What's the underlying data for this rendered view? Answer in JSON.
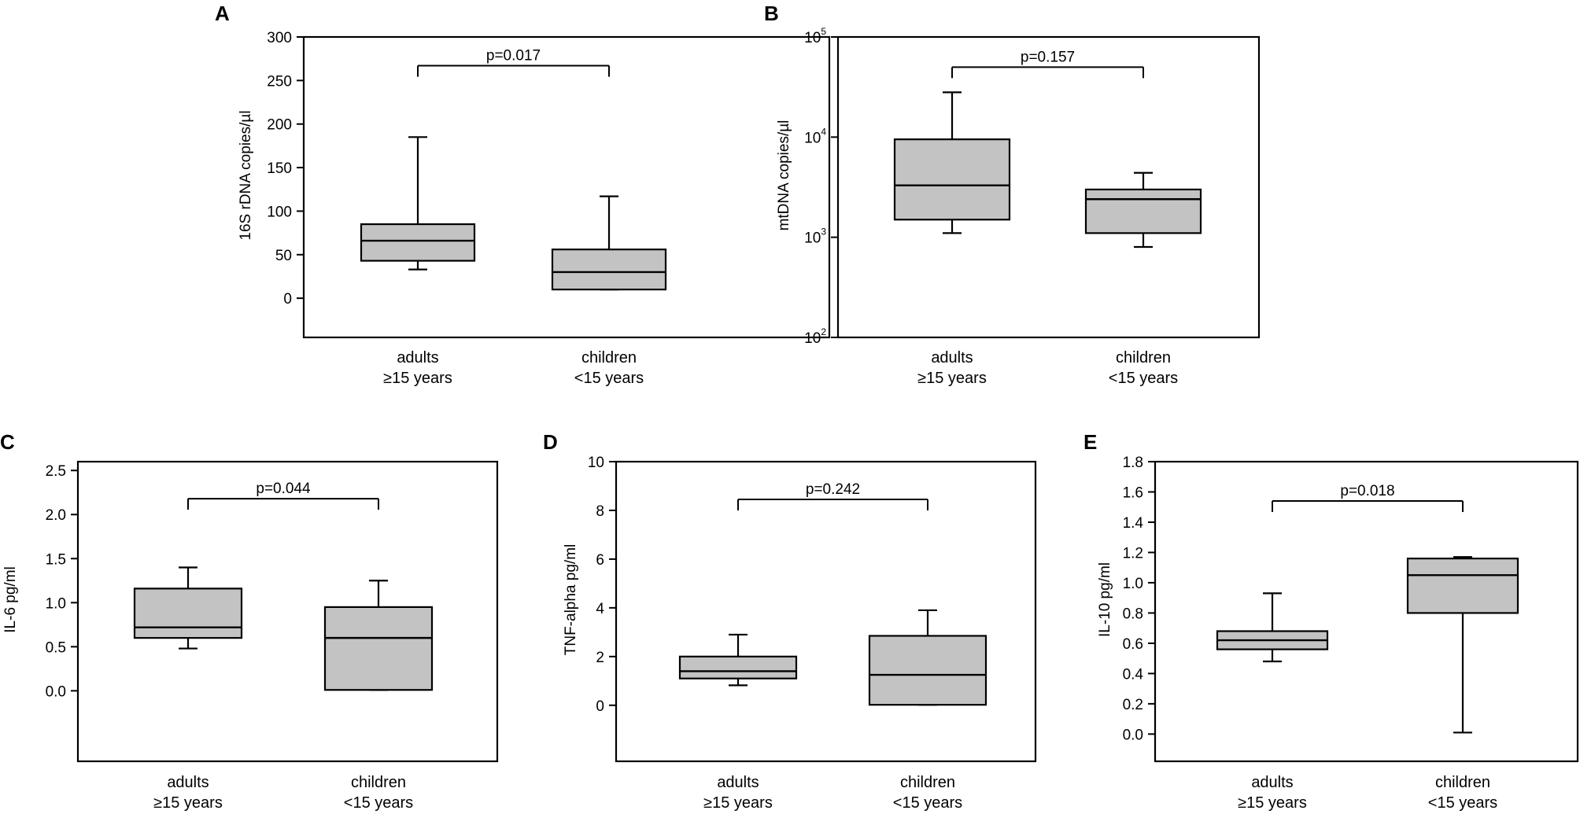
{
  "chart_data": [
    {
      "panel": "A",
      "type": "box",
      "ylabel": "16S rDNA copies/µl",
      "yscale": "linear",
      "ylim": [
        -45,
        300
      ],
      "yticks": [
        "0",
        "50",
        "100",
        "150",
        "200",
        "250",
        "300"
      ],
      "ytick_values": [
        0,
        50,
        100,
        150,
        200,
        250,
        300
      ],
      "categories": [
        {
          "line1": "adults",
          "line2": "≥15 years"
        },
        {
          "line1": "children",
          "line2": "<15 years"
        }
      ],
      "boxes": [
        {
          "min": 33,
          "q1": 43,
          "median": 66,
          "q3": 85,
          "max": 185
        },
        {
          "min": 10,
          "q1": 10,
          "median": 30,
          "q3": 56,
          "max": 117
        }
      ],
      "bracket": {
        "label": "p=0.017",
        "y": 267
      }
    },
    {
      "panel": "B",
      "type": "box",
      "ylabel": "mtDNA copies/µl",
      "yscale": "log",
      "ylim": [
        100,
        100000
      ],
      "yticks_base": [
        "10",
        "10",
        "10",
        "10"
      ],
      "yticks_exp": [
        "2",
        "3",
        "4",
        "5"
      ],
      "ytick_values": [
        100,
        1000,
        10000,
        100000
      ],
      "categories": [
        {
          "line1": "adults",
          "line2": "≥15 years"
        },
        {
          "line1": "children",
          "line2": "<15 years"
        }
      ],
      "boxes": [
        {
          "min": 1100,
          "q1": 1500,
          "median": 3300,
          "q3": 9500,
          "max": 28000
        },
        {
          "min": 800,
          "q1": 1100,
          "median": 2400,
          "q3": 3000,
          "max": 4400
        }
      ],
      "bracket": {
        "label": "p=0.157",
        "y": 50000
      }
    },
    {
      "panel": "C",
      "type": "box",
      "ylabel": "IL-6 pg/ml",
      "yscale": "linear",
      "ylim": [
        -0.8,
        2.6
      ],
      "yticks": [
        "0.0",
        "0.5",
        "1.0",
        "1.5",
        "2.0",
        "2.5"
      ],
      "ytick_values": [
        0,
        0.5,
        1,
        1.5,
        2,
        2.5
      ],
      "categories": [
        {
          "line1": "adults",
          "line2": "≥15 years"
        },
        {
          "line1": "children",
          "line2": "<15 years"
        }
      ],
      "boxes": [
        {
          "min": 0.48,
          "q1": 0.6,
          "median": 0.72,
          "q3": 1.16,
          "max": 1.4
        },
        {
          "min": 0.01,
          "q1": 0.01,
          "median": 0.6,
          "q3": 0.95,
          "max": 1.25
        }
      ],
      "bracket": {
        "label": "p=0.044",
        "y": 2.18
      }
    },
    {
      "panel": "D",
      "type": "box",
      "ylabel": "TNF-alpha pg/ml",
      "yscale": "linear",
      "ylim": [
        -2.3,
        10
      ],
      "yticks": [
        "0",
        "2",
        "4",
        "6",
        "8",
        "10"
      ],
      "ytick_values": [
        0,
        2,
        4,
        6,
        8,
        10
      ],
      "categories": [
        {
          "line1": "adults",
          "line2": "≥15 years"
        },
        {
          "line1": "children",
          "line2": "<15 years"
        }
      ],
      "boxes": [
        {
          "min": 0.82,
          "q1": 1.1,
          "median": 1.4,
          "q3": 2.0,
          "max": 2.9
        },
        {
          "min": 0.02,
          "q1": 0.02,
          "median": 1.25,
          "q3": 2.85,
          "max": 3.9
        }
      ],
      "bracket": {
        "label": "p=0.242",
        "y": 8.45
      }
    },
    {
      "panel": "E",
      "type": "box",
      "ylabel": "IL-10 pg/ml",
      "yscale": "linear",
      "ylim": [
        -0.18,
        1.8
      ],
      "yticks": [
        "0.0",
        "0.2",
        "0.4",
        "0.6",
        "0.8",
        "1.0",
        "1.2",
        "1.4",
        "1.6",
        "1.8"
      ],
      "ytick_values": [
        0,
        0.2,
        0.4,
        0.6,
        0.8,
        1.0,
        1.2,
        1.4,
        1.6,
        1.8
      ],
      "categories": [
        {
          "line1": "adults",
          "line2": "≥15 years"
        },
        {
          "line1": "children",
          "line2": "<15 years"
        }
      ],
      "boxes": [
        {
          "min": 0.48,
          "q1": 0.56,
          "median": 0.62,
          "q3": 0.68,
          "max": 0.93
        },
        {
          "min": 0.01,
          "q1": 0.8,
          "median": 1.05,
          "q3": 1.16,
          "max": 1.17
        }
      ],
      "bracket": {
        "label": "p=0.018",
        "y": 1.54
      }
    }
  ],
  "style": {
    "box_fill": "#c3c3c3",
    "line_color": "#000000"
  }
}
